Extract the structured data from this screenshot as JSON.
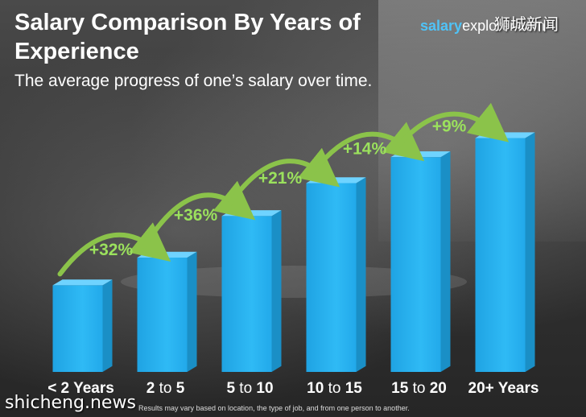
{
  "title": "Salary Comparison By Years of Experience",
  "subtitle": "The average progress of one’s salary over time.",
  "logo": {
    "part1": "salary",
    "part2": "explorer.com"
  },
  "watermark_top": "狮城新闻",
  "watermark_bottom": "shicheng.news",
  "footnote": "Results may vary based on location, the type of job, and from one person to another.",
  "colors": {
    "bar_front": "#29b6f6",
    "bar_side": "#1a8fc6",
    "bar_top": "#6fd3ff",
    "arrow": "#8bc34a",
    "percent_text": "#9be15d"
  },
  "chart_data": {
    "type": "bar",
    "categories": [
      {
        "bold": "< 2 Years",
        "a": "",
        "mid": "",
        "b": ""
      },
      {
        "bold": "",
        "a": "2",
        "mid": " to ",
        "b": "5"
      },
      {
        "bold": "",
        "a": "5",
        "mid": " to ",
        "b": "10"
      },
      {
        "bold": "",
        "a": "10",
        "mid": " to ",
        "b": "15"
      },
      {
        "bold": "",
        "a": "15",
        "mid": " to ",
        "b": "20"
      },
      {
        "bold": "20+ Years",
        "a": "",
        "mid": "",
        "b": ""
      }
    ],
    "values": [
      100,
      132,
      180,
      218,
      248,
      270
    ],
    "ylim": [
      0,
      290
    ],
    "increases": [
      "+32%",
      "+36%",
      "+21%",
      "+14%",
      "+9%"
    ],
    "grid": false
  }
}
